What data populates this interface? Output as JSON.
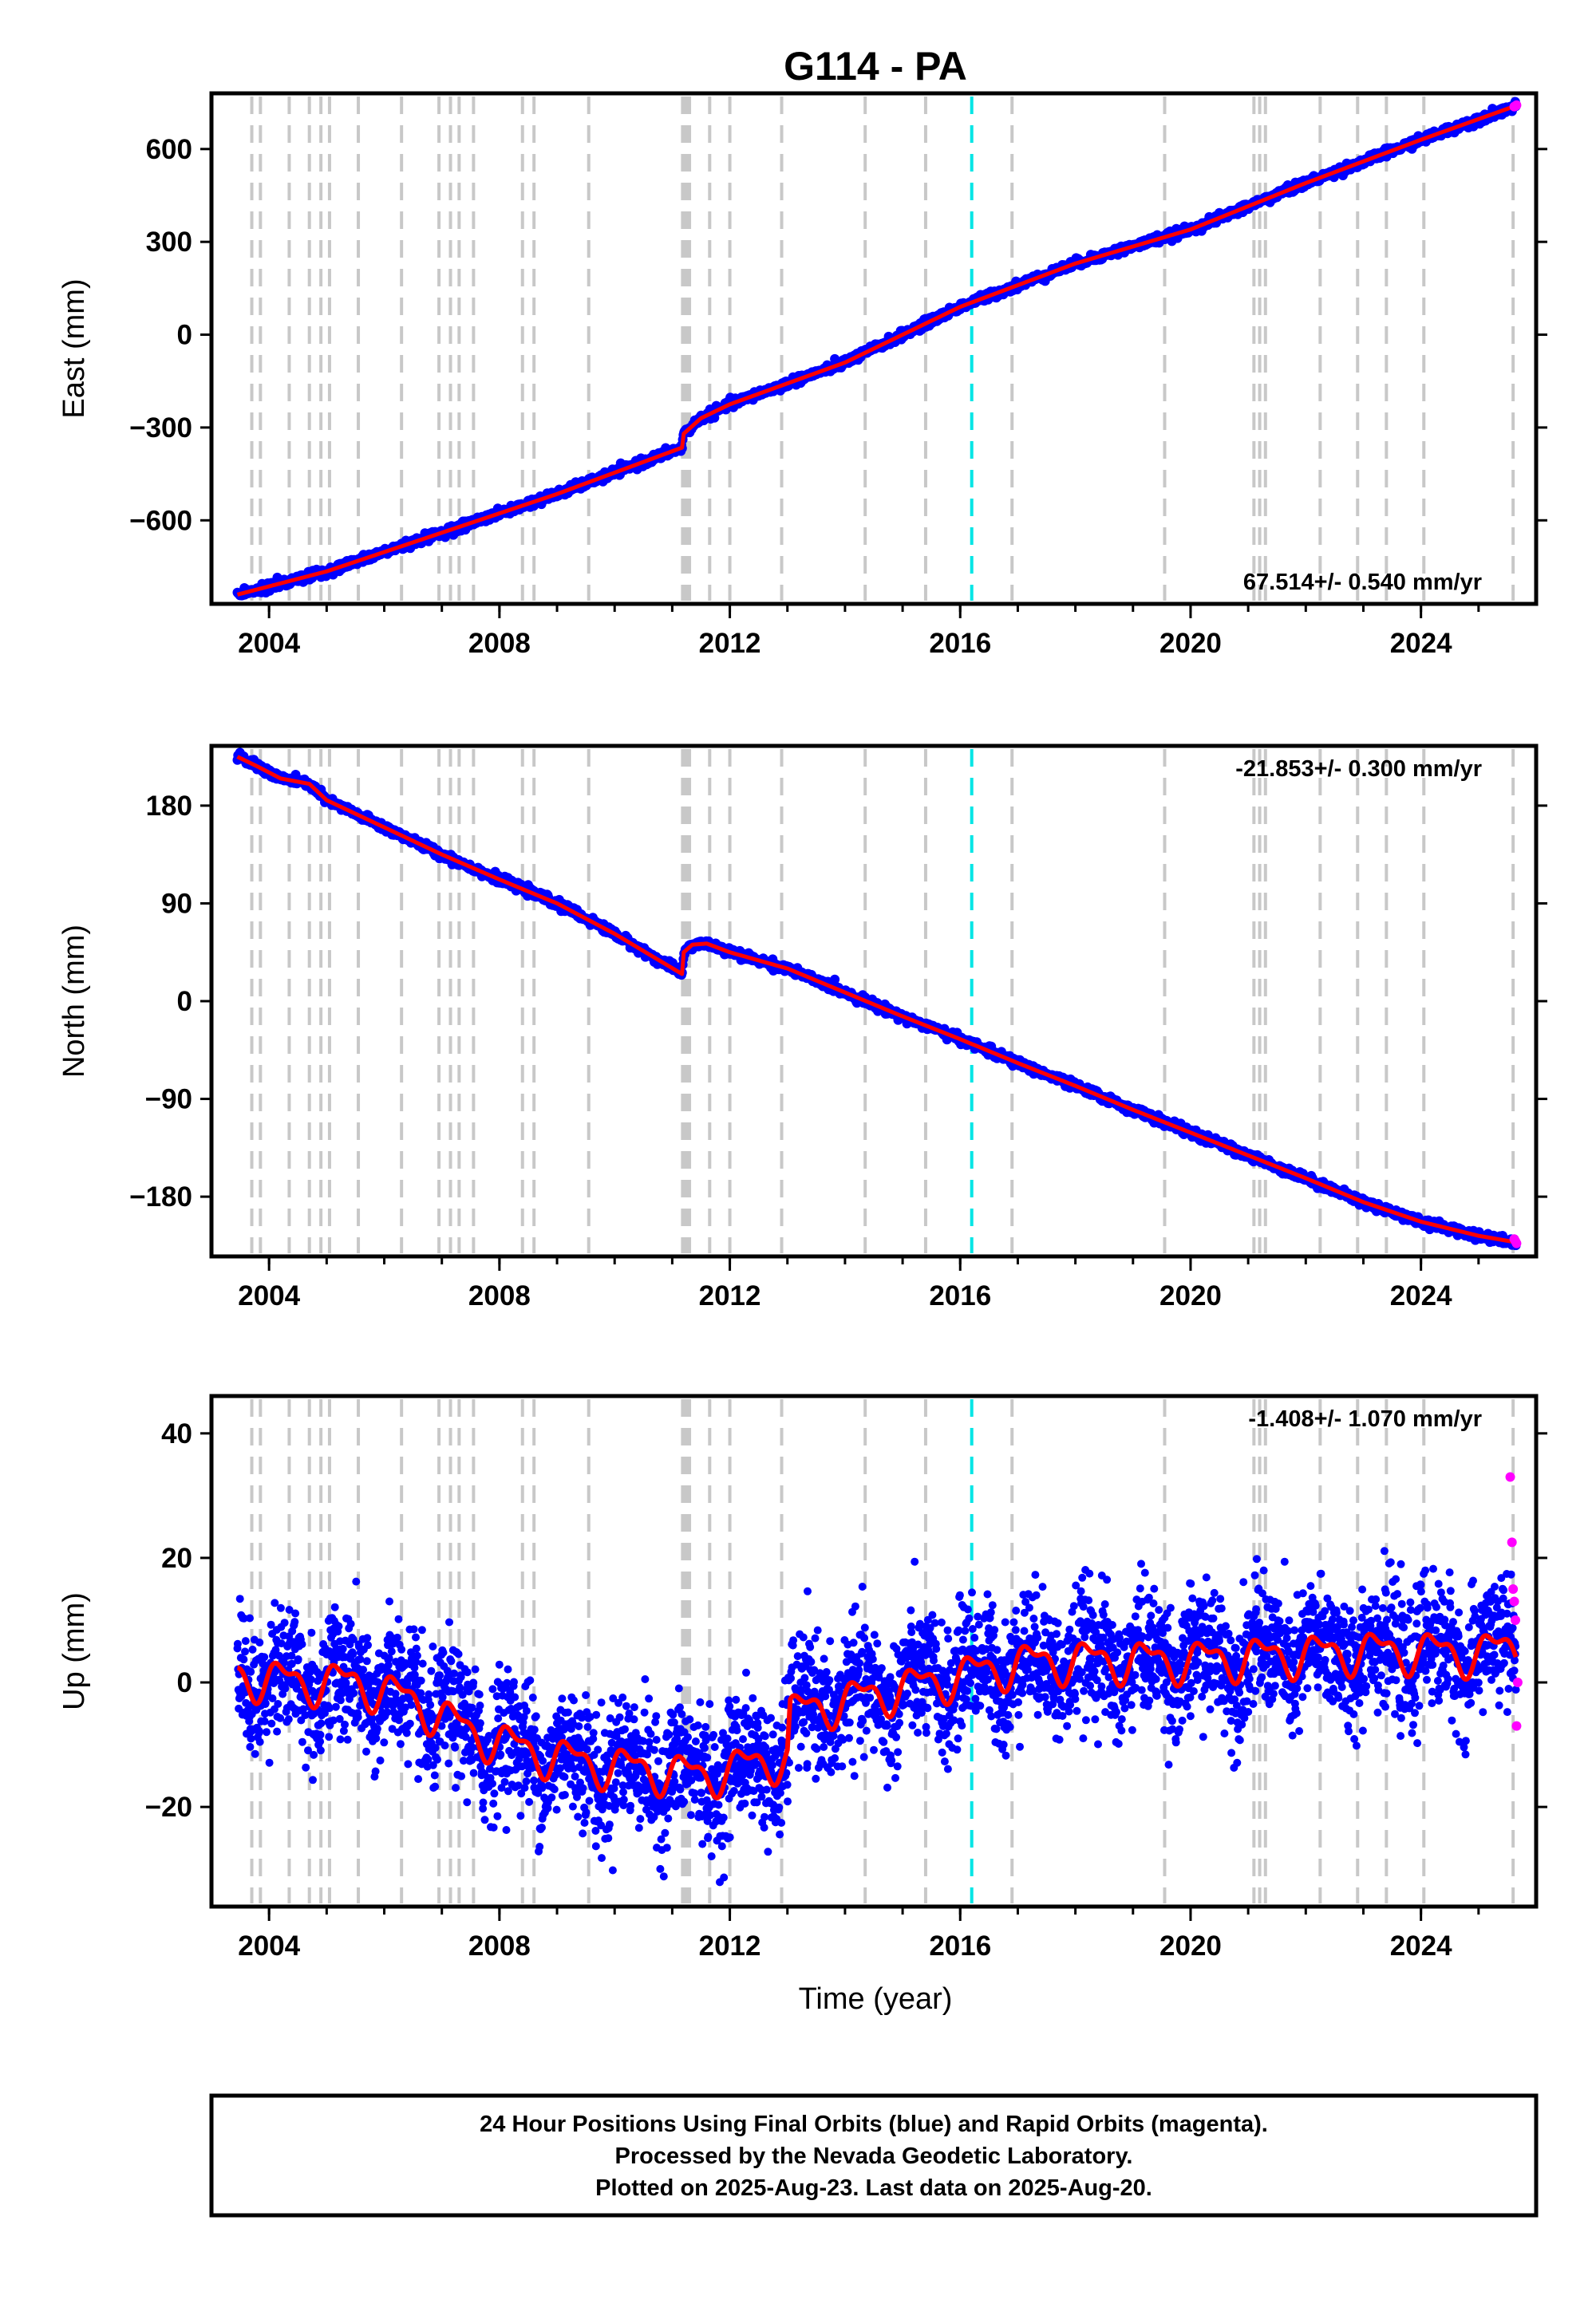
{
  "chart_data": {
    "type": "scatter",
    "title": "G114 - PA",
    "xlabel": "Time (year)",
    "x_ticks": [
      "2004",
      "2008",
      "2012",
      "2016",
      "2020",
      "2024"
    ],
    "xlim": [
      2003.0,
      2026.0
    ],
    "colors": {
      "final_orbits": "#0000ff",
      "rapid_orbits": "#ff00ff",
      "model": "#ff0000",
      "equipment_change": "#c8c8c8",
      "event_marker": "#00e5e5"
    },
    "equipment_change_lines": [
      2003.7,
      2003.85,
      2004.35,
      2004.7,
      2004.9,
      2005.05,
      2005.55,
      2006.3,
      2006.95,
      2007.15,
      2007.3,
      2007.55,
      2008.4,
      2008.6,
      2009.55,
      2011.18,
      2011.22,
      2011.26,
      2011.3,
      2011.65,
      2012.0,
      2012.9,
      2014.35,
      2015.4,
      2016.9,
      2019.55,
      2021.1,
      2021.2,
      2021.3,
      2022.25,
      2022.9,
      2023.4,
      2024.05,
      2025.6
    ],
    "event_lines": [
      2016.2
    ],
    "panels": [
      {
        "ylabel": "East (mm)",
        "ylim": [
          -870,
          780
        ],
        "y_ticks": [
          -600,
          -300,
          0,
          300,
          600
        ],
        "y_tick_labels": [
          "−600",
          "−300",
          "0",
          "300",
          "600"
        ],
        "rate_label": "67.514+/- 0.540 mm/yr",
        "rate_position": "bottom-right",
        "model": {
          "x": [
            2003.45,
            2005.0,
            2007.0,
            2009.0,
            2011.17,
            2011.2,
            2011.5,
            2012.0,
            2014.0,
            2016.0,
            2018.0,
            2020.0,
            2022.0,
            2024.0,
            2025.65
          ],
          "y": [
            -840,
            -765,
            -640,
            -515,
            -365,
            -320,
            -270,
            -225,
            -90,
            90,
            230,
            340,
            490,
            630,
            740
          ]
        },
        "rapid_points": {
          "x": [
            2025.62,
            2025.64,
            2025.66
          ],
          "y": [
            737,
            739,
            742
          ]
        }
      },
      {
        "ylabel": "North (mm)",
        "ylim": [
          -235,
          235
        ],
        "y_ticks": [
          -180,
          -90,
          0,
          90,
          180
        ],
        "y_tick_labels": [
          "−180",
          "−90",
          "0",
          "90",
          "180"
        ],
        "rate_label": "-21.853+/- 0.300 mm/yr",
        "rate_position": "top-right",
        "model": {
          "x": [
            2003.45,
            2003.8,
            2004.2,
            2004.7,
            2005.0,
            2006.0,
            2007.0,
            2008.0,
            2009.0,
            2010.0,
            2011.17,
            2011.2,
            2011.35,
            2011.6,
            2012.0,
            2013.0,
            2014.0,
            2015.0,
            2016.0,
            2017.0,
            2018.0,
            2019.0,
            2020.0,
            2021.0,
            2022.0,
            2023.0,
            2024.0,
            2025.0,
            2025.65
          ],
          "y": [
            225,
            216,
            205,
            200,
            185,
            160,
            135,
            112,
            90,
            62,
            25,
            45,
            52,
            53,
            45,
            30,
            8,
            -14,
            -35,
            -57,
            -78,
            -100,
            -121,
            -142,
            -163,
            -185,
            -203,
            -216,
            -222
          ]
        },
        "rapid_points": {
          "x": [
            2025.62,
            2025.64,
            2025.66
          ],
          "y": [
            -219,
            -221,
            -223
          ]
        }
      },
      {
        "ylabel": "Up (mm)",
        "ylim": [
          -36,
          46
        ],
        "y_ticks": [
          -20,
          0,
          20,
          40
        ],
        "y_tick_labels": [
          "−20",
          "0",
          "20",
          "40"
        ],
        "rate_label": "-1.408+/- 1.070 mm/yr",
        "rate_position": "top-right",
        "scatter_sd_mm": 5,
        "model": {
          "x": [
            2003.45,
            2004.5,
            2005.5,
            2006.5,
            2007.5,
            2008.5,
            2009.5,
            2010.5,
            2011.5,
            2012.5,
            2013.0,
            2013.05,
            2014.0,
            2015.0,
            2016.0,
            2017.0,
            2018.0,
            2019.0,
            2020.0,
            2021.0,
            2022.0,
            2023.0,
            2024.0,
            2025.0,
            2025.65
          ],
          "y": [
            1,
            0,
            0,
            -3,
            -8,
            -11,
            -13,
            -14,
            -15,
            -13,
            -12,
            -5,
            -3,
            -1,
            1,
            3,
            3.5,
            3.5,
            3.5,
            4,
            4.5,
            5,
            5,
            4.5,
            6
          ]
        },
        "rapid_points": {
          "x": [
            2025.55,
            2025.58,
            2025.6,
            2025.62,
            2025.64,
            2025.66,
            2025.68
          ],
          "y": [
            33,
            22.5,
            15,
            13,
            10,
            -7,
            0
          ]
        }
      }
    ]
  },
  "footer": {
    "line1": "24 Hour Positions Using Final Orbits (blue) and Rapid Orbits (magenta).",
    "line2": "Processed by the Nevada Geodetic Laboratory.",
    "line3": "Plotted on 2025-Aug-23. Last data on 2025-Aug-20."
  }
}
